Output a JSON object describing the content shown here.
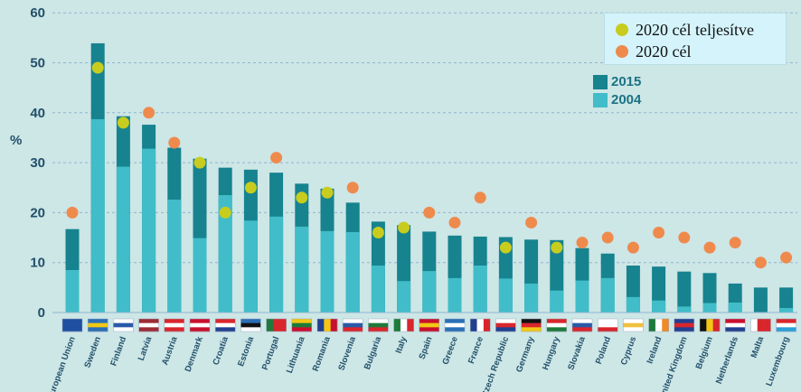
{
  "chart_data": {
    "type": "bar",
    "ylabel": "%",
    "ylim": [
      0,
      60
    ],
    "yticks": [
      "0",
      "10",
      "20",
      "30",
      "40",
      "50",
      "60"
    ],
    "grid": true,
    "categories": [
      "European Union",
      "Sweden",
      "Finland",
      "Latvia",
      "Austria",
      "Denmark",
      "Croatia",
      "Estonia",
      "Portugal",
      "Lithuania",
      "Romania",
      "Slovenia",
      "Bulgaria",
      "Italy",
      "Spain",
      "Greece",
      "France",
      "Czech Republic",
      "Germany",
      "Hungary",
      "Slovakia",
      "Poland",
      "Cyprus",
      "Ireland",
      "United Kingdom",
      "Belgium",
      "Netherlands",
      "Malta",
      "Luxembourg"
    ],
    "series": [
      {
        "name": "2015",
        "color": "#16838f",
        "values": [
          16.7,
          53.9,
          39.3,
          37.6,
          33.0,
          30.8,
          29.0,
          28.6,
          28.0,
          25.8,
          24.8,
          22.0,
          18.2,
          17.5,
          16.2,
          15.4,
          15.2,
          15.1,
          14.6,
          14.5,
          12.9,
          11.8,
          9.4,
          9.2,
          8.2,
          7.9,
          5.8,
          5.0,
          5.0
        ]
      },
      {
        "name": "2004",
        "color": "#40bdc8",
        "values": [
          8.5,
          38.7,
          29.2,
          32.8,
          22.6,
          14.9,
          23.5,
          18.4,
          19.2,
          17.2,
          16.3,
          16.1,
          9.4,
          6.3,
          8.3,
          6.9,
          9.4,
          6.8,
          5.8,
          4.4,
          6.4,
          6.9,
          3.1,
          2.4,
          1.2,
          1.9,
          2.0,
          0.1,
          0.9
        ]
      }
    ],
    "targets": {
      "name": "2020 cél",
      "color": "#ef8a4d",
      "values": [
        20,
        49,
        38,
        40,
        34,
        30,
        20,
        25,
        31,
        23,
        24,
        25,
        16,
        17,
        20,
        18,
        23,
        13,
        18,
        13,
        14,
        15,
        13,
        16,
        15,
        13,
        14,
        10,
        11
      ]
    },
    "achieved": {
      "name": "2020 cél teljesítve",
      "color": "#c8cc1e",
      "values": [
        false,
        true,
        true,
        false,
        false,
        true,
        true,
        true,
        false,
        true,
        true,
        false,
        true,
        true,
        false,
        false,
        false,
        true,
        false,
        true,
        false,
        false,
        false,
        false,
        false,
        false,
        false,
        false,
        false
      ]
    },
    "legend": [
      {
        "label": "2020 cél teljesítve",
        "color": "#c8cc1e"
      },
      {
        "label": "2020 cél",
        "color": "#ef8a4d"
      },
      {
        "label": "2015",
        "color": "#16838f"
      },
      {
        "label": "2004",
        "color": "#40bdc8"
      }
    ],
    "legend_position": "top-right"
  }
}
